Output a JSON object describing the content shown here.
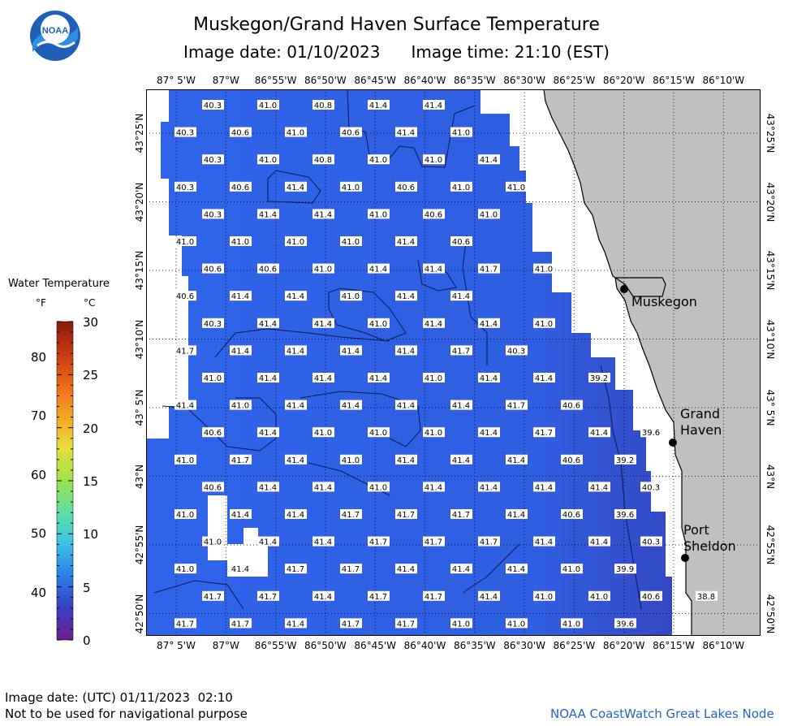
{
  "title": "Muskegon/Grand Haven Surface Temperature",
  "subtitle": {
    "date": "Image date: 01/10/2023",
    "time": "Image time: 21:10 (EST)"
  },
  "logo_text": "NOAA",
  "longitude_labels": [
    "87° 5'W",
    "87°W",
    "86°55'W",
    "86°50'W",
    "86°45'W",
    "86°40'W",
    "86°35'W",
    "86°30'W",
    "86°25'W",
    "86°20'W",
    "86°15'W",
    "86°10'W"
  ],
  "latitude_labels": [
    "43°25'N",
    "43°20'N",
    "43°15'N",
    "43°10'N",
    "43° 5'N",
    "43°N",
    "42°55'N",
    "42°50'N"
  ],
  "cities": [
    {
      "name": "Muskegon",
      "lines": [
        "Muskegon"
      ]
    },
    {
      "name": "Grand Haven",
      "lines": [
        "Grand",
        "Haven"
      ]
    },
    {
      "name": "Port Sheldon",
      "lines": [
        "Port",
        "Sheldon"
      ]
    }
  ],
  "legend": {
    "title": "Water Temperature",
    "unit_f": "°F",
    "unit_c": "°C",
    "f_ticks": [
      "80",
      "70",
      "60",
      "50",
      "40"
    ],
    "c_ticks": [
      "30",
      "25",
      "20",
      "15",
      "10",
      "5",
      "0"
    ],
    "colors": [
      "#6e1e8c",
      "#3a3fc6",
      "#2b7de8",
      "#3cc0e8",
      "#5ee0a8",
      "#9be24c",
      "#e6e03a",
      "#f5a623",
      "#ec6a1c",
      "#c83a12",
      "#8a1a0a"
    ]
  },
  "map": {
    "land_color": "#c0c0c0",
    "water_color": "#2f63e6",
    "temperatures": [
      [
        "40.3",
        "41.0",
        "40.8",
        "41.4",
        "41.4"
      ],
      [
        "40.3",
        "40.6",
        "41.0",
        "40.6",
        "41.4",
        "41.0"
      ],
      [
        "40.3",
        "41.0",
        "40.8",
        "41.0",
        "41.0",
        "41.4"
      ],
      [
        "40.3",
        "40.6",
        "41.4",
        "41.0",
        "40.6",
        "41.0",
        "41.0"
      ],
      [
        "40.3",
        "41.4",
        "41.4",
        "41.0",
        "40.6",
        "41.0"
      ],
      [
        "41.0",
        "41.0",
        "41.0",
        "41.0",
        "41.4",
        "40.6"
      ],
      [
        "40.6",
        "40.6",
        "41.0",
        "41.4",
        "41.4",
        "41.7",
        "41.0"
      ],
      [
        "40.6",
        "41.4",
        "41.4",
        "41.0",
        "41.4",
        "41.4"
      ],
      [
        "40.3",
        "41.4",
        "41.4",
        "41.0",
        "41.4",
        "41.4",
        "41.0"
      ],
      [
        "41.7",
        "41.4",
        "41.4",
        "41.4",
        "41.4",
        "41.7",
        "40.3"
      ],
      [
        "41.0",
        "41.4",
        "41.4",
        "41.4",
        "41.0",
        "41.4",
        "41.4",
        "39.2"
      ],
      [
        "41.4",
        "41.0",
        "41.4",
        "41.4",
        "41.4",
        "41.4",
        "41.7",
        "40.6"
      ],
      [
        "40.6",
        "41.4",
        "41.0",
        "41.0",
        "41.0",
        "41.4",
        "41.7",
        "41.4",
        "39.6"
      ],
      [
        "41.0",
        "41.7",
        "41.4",
        "41.0",
        "41.4",
        "41.4",
        "41.4",
        "40.6",
        "39.2"
      ],
      [
        "40.6",
        "41.4",
        "41.4",
        "41.0",
        "41.4",
        "41.4",
        "41.4",
        "41.4",
        "40.3"
      ],
      [
        "41.0",
        "41.4",
        "41.4",
        "41.7",
        "41.7",
        "41.7",
        "41.4",
        "40.6",
        "39.6"
      ],
      [
        "41.0",
        "41.4",
        "41.4",
        "41.7",
        "41.7",
        "41.7",
        "41.4",
        "41.4",
        "40.3"
      ],
      [
        "41.0",
        "41.4",
        "41.7",
        "41.7",
        "41.4",
        "41.4",
        "41.4",
        "41.0",
        "39.9"
      ],
      [
        "41.7",
        "41.7",
        "41.4",
        "41.7",
        "41.7",
        "41.4",
        "41.0",
        "41.0",
        "40.6",
        "38.8"
      ],
      [
        "41.7",
        "41.7",
        "41.4",
        "41.7",
        "41.7",
        "41.0",
        "41.0",
        "41.0",
        "39.6"
      ]
    ]
  },
  "footer": {
    "utc_date": "Image date: (UTC) 01/11/2023  02:10",
    "disclaimer": "Not to be used for navigational purpose",
    "credit": "NOAA CoastWatch Great Lakes Node"
  }
}
